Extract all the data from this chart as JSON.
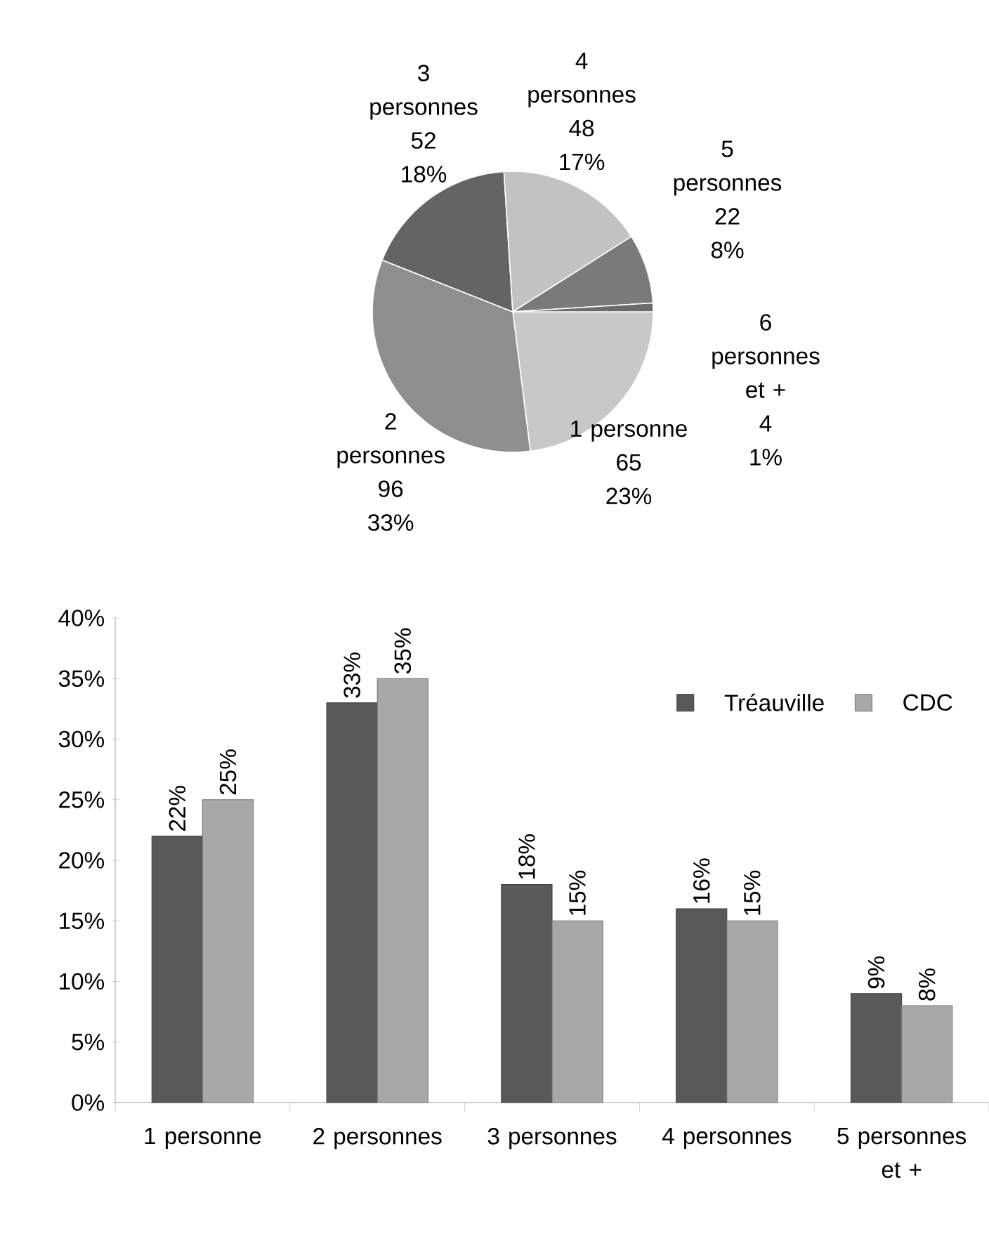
{
  "chart_data": [
    {
      "type": "pie",
      "categories": [
        "1 personne",
        "2 personnes",
        "3 personnes",
        "4 personnes",
        "5 personnes",
        "6 personnes et +"
      ],
      "values": [
        23,
        33,
        18,
        17,
        8,
        1
      ],
      "value_labels": [
        "65 23%",
        "96 33%",
        "52 18%",
        "48 17%",
        "22 8%",
        "4 1%"
      ],
      "colors": [
        "#c8c8c8",
        "#8f8f8f",
        "#646464",
        "#c2c2c2",
        "#7a7a7a",
        "#6c6c6c"
      ]
    },
    {
      "type": "bar",
      "categories": [
        "1 personne",
        "2 personnes",
        "3 personnes",
        "4 personnes",
        "5 personnes et +"
      ],
      "ylim": [
        0,
        40
      ],
      "yticks": [
        {
          "value": 0,
          "label": "0%"
        },
        {
          "value": 5,
          "label": "5%"
        },
        {
          "value": 10,
          "label": "10%"
        },
        {
          "value": 15,
          "label": "15%"
        },
        {
          "value": 20,
          "label": "20%"
        },
        {
          "value": 25,
          "label": "25%"
        },
        {
          "value": 30,
          "label": "30%"
        },
        {
          "value": 35,
          "label": "35%"
        },
        {
          "value": 40,
          "label": "40%"
        }
      ],
      "legend": "top right",
      "series": [
        {
          "name": "Tréauville",
          "color": "#595959",
          "values": [
            22,
            33,
            18,
            16,
            9
          ],
          "value_labels": [
            "22%",
            "33%",
            "18%",
            "16%",
            "9%"
          ]
        },
        {
          "name": "CDC",
          "color": "#a8a8a8",
          "values": [
            25,
            35,
            15,
            15,
            8
          ],
          "value_labels": [
            "25%",
            "35%",
            "15%",
            "15%",
            "8%"
          ]
        }
      ]
    }
  ]
}
